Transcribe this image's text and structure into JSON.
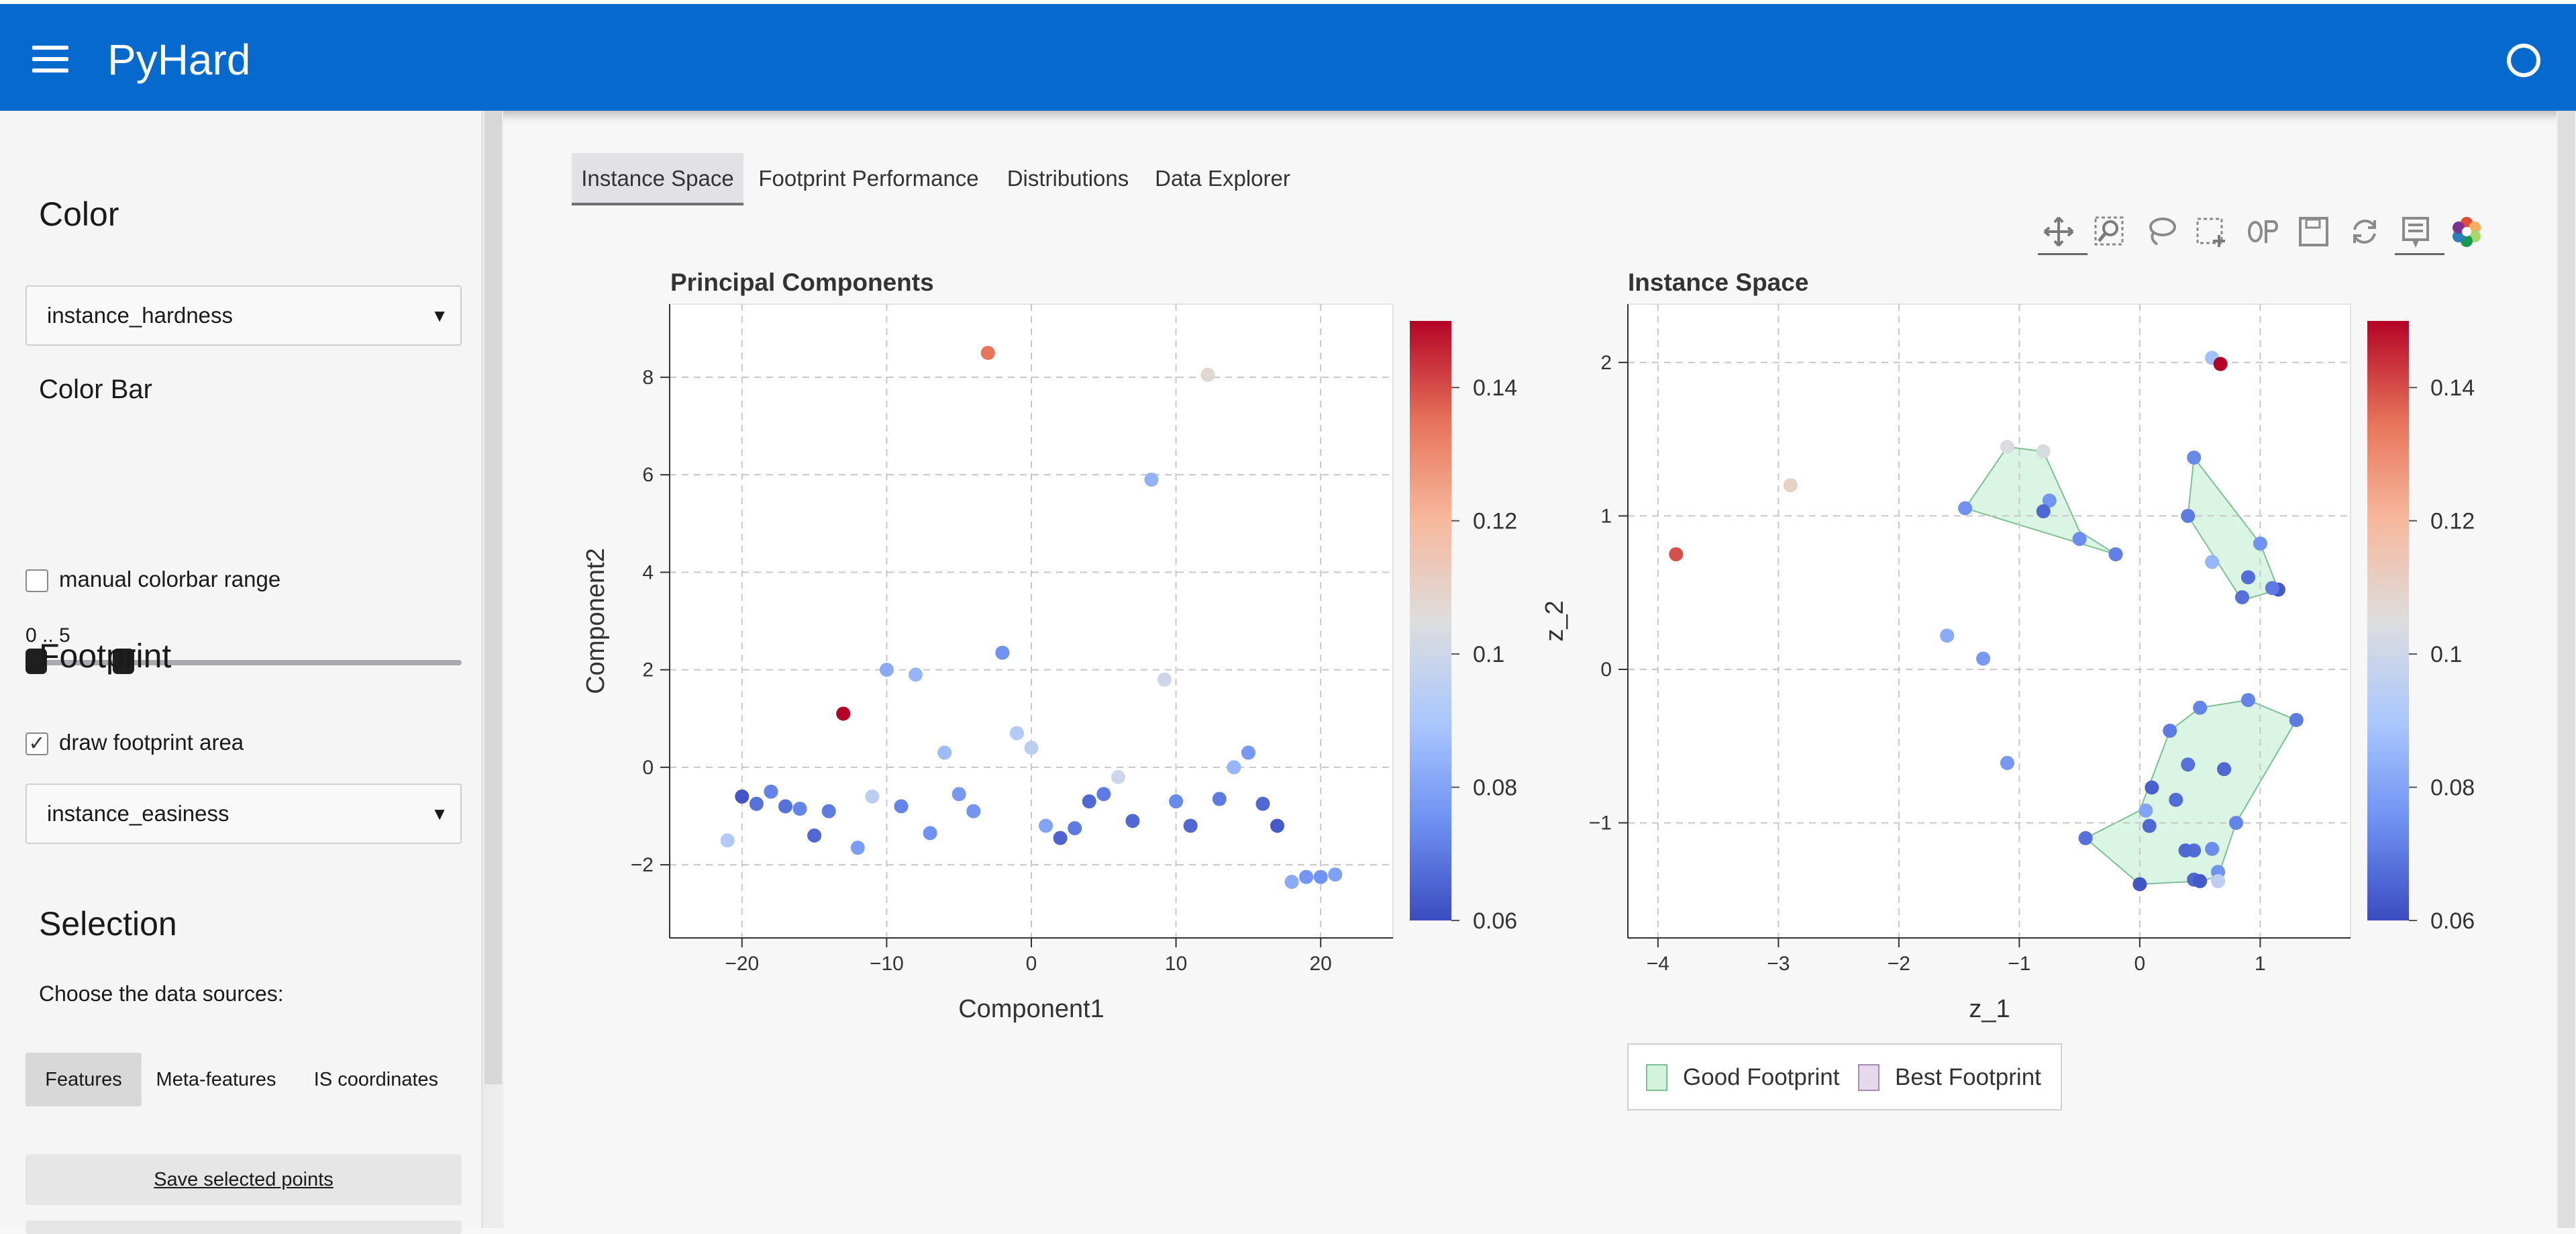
{
  "app": {
    "title": "PyHard"
  },
  "sidebar": {
    "color_heading": "Color",
    "color_select": "instance_hardness",
    "colorbar_heading": "Color Bar",
    "manual_range_label": "manual colorbar range",
    "range_value_label": "0 .. 5",
    "range_values": [
      0,
      1
    ],
    "range_max": 5,
    "footprint_heading": "Footprint",
    "draw_footprint_label": "draw footprint area",
    "draw_footprint_check": "✓",
    "footprint_select": "instance_easiness",
    "selection_heading": "Selection",
    "data_sources_label": "Choose the data sources:",
    "sources": [
      "Features",
      "Meta-features",
      "IS coordinates"
    ],
    "save_button": "Save selected points"
  },
  "tabs": [
    "Instance Space",
    "Footprint Performance",
    "Distributions",
    "Data Explorer"
  ],
  "toolbar": [
    "pan-icon",
    "box-zoom-icon",
    "lasso-select-icon",
    "box-select-icon",
    "hover-icon",
    "save-icon",
    "reset-icon",
    "tooltip-icon",
    "bokeh-logo-icon"
  ],
  "colorbar": {
    "min": 0.06,
    "max": 0.15,
    "ticks": [
      0.06,
      0.08,
      0.1,
      0.12,
      0.14
    ],
    "tick_labels": [
      "0.06",
      "0.08",
      "0.1",
      "0.12",
      "0.14"
    ],
    "colors": [
      "#3b4cc0",
      "#6f92f3",
      "#aac7fd",
      "#dddddd",
      "#f7b89c",
      "#e7745b",
      "#b40426"
    ]
  },
  "chart_data": [
    {
      "type": "scatter",
      "title": "Principal Components",
      "xlabel": "Component1",
      "ylabel": "Component2",
      "xlim": [
        -25,
        25
      ],
      "ylim": [
        -3.5,
        9.5
      ],
      "xticks": [
        -20,
        -10,
        0,
        10,
        20
      ],
      "xtick_labels": [
        "−20",
        "−10",
        "0",
        "10",
        "20"
      ],
      "yticks": [
        -2,
        0,
        2,
        4,
        6,
        8
      ],
      "ytick_labels": [
        "−2",
        "0",
        "2",
        "4",
        "6",
        "8"
      ],
      "grid": true,
      "points": [
        [
          -3,
          8.5,
          0.135
        ],
        [
          12.2,
          8.05,
          0.108
        ],
        [
          8.3,
          5.9,
          0.084
        ],
        [
          -13,
          1.1,
          0.15
        ],
        [
          -10,
          2.0,
          0.082
        ],
        [
          -8,
          1.9,
          0.085
        ],
        [
          -2,
          2.35,
          0.075
        ],
        [
          9.2,
          1.8,
          0.1
        ],
        [
          -1,
          0.7,
          0.092
        ],
        [
          0,
          0.4,
          0.095
        ],
        [
          -6,
          0.3,
          0.087
        ],
        [
          6,
          -0.2,
          0.1
        ],
        [
          14,
          0,
          0.085
        ],
        [
          15,
          0.3,
          0.077
        ],
        [
          -20,
          -0.6,
          0.062
        ],
        [
          -19,
          -0.75,
          0.068
        ],
        [
          -18,
          -0.5,
          0.072
        ],
        [
          -17,
          -0.8,
          0.068
        ],
        [
          -16,
          -0.85,
          0.072
        ],
        [
          -14,
          -0.9,
          0.07
        ],
        [
          -11,
          -0.6,
          0.095
        ],
        [
          -9,
          -0.8,
          0.072
        ],
        [
          -5,
          -0.55,
          0.077
        ],
        [
          -4,
          -0.9,
          0.076
        ],
        [
          -15,
          -1.4,
          0.066
        ],
        [
          -12,
          -1.65,
          0.078
        ],
        [
          -21,
          -1.5,
          0.092
        ],
        [
          -7,
          -1.35,
          0.075
        ],
        [
          1,
          -1.2,
          0.08
        ],
        [
          2,
          -1.45,
          0.065
        ],
        [
          3,
          -1.25,
          0.07
        ],
        [
          4,
          -0.7,
          0.066
        ],
        [
          5,
          -0.55,
          0.07
        ],
        [
          7,
          -1.1,
          0.066
        ],
        [
          10,
          -0.7,
          0.073
        ],
        [
          11,
          -1.2,
          0.066
        ],
        [
          13,
          -0.65,
          0.07
        ],
        [
          16,
          -0.75,
          0.066
        ],
        [
          17,
          -1.2,
          0.063
        ],
        [
          18,
          -2.35,
          0.082
        ],
        [
          19,
          -2.25,
          0.076
        ],
        [
          20,
          -2.25,
          0.075
        ],
        [
          21,
          -2.2,
          0.079
        ]
      ]
    },
    {
      "type": "scatter",
      "title": "Instance Space",
      "xlabel": "z_1",
      "ylabel": "z_2",
      "xlim": [
        -4.25,
        1.75
      ],
      "ylim": [
        -1.75,
        2.38
      ],
      "xticks": [
        -4,
        -3,
        -2,
        -1,
        0,
        1
      ],
      "xtick_labels": [
        "−4",
        "−3",
        "−2",
        "−1",
        "0",
        "1"
      ],
      "yticks": [
        -1,
        0,
        1,
        2
      ],
      "ytick_labels": [
        "−1",
        "0",
        "1",
        "2"
      ],
      "grid": true,
      "legend": [
        "Good Footprint",
        "Best Footprint"
      ],
      "legend_placement": "bottom",
      "footprint_colors": {
        "good": "#d3f3df",
        "good_stroke": "#7fbf95",
        "best": "#e6d9ec",
        "best_stroke": "#a78bb3"
      },
      "good_footprints": [
        [
          [
            -1.45,
            1.05
          ],
          [
            -1.1,
            1.45
          ],
          [
            -0.8,
            1.42
          ],
          [
            -0.5,
            0.9
          ],
          [
            -0.2,
            0.75
          ]
        ],
        [
          [
            0.4,
            1.0
          ],
          [
            0.45,
            1.38
          ],
          [
            1.0,
            0.82
          ],
          [
            1.15,
            0.52
          ],
          [
            0.85,
            0.45
          ]
        ],
        [
          [
            -0.45,
            -1.1
          ],
          [
            0.0,
            -1.4
          ],
          [
            0.5,
            -1.38
          ],
          [
            0.65,
            -1.35
          ],
          [
            0.8,
            -1.0
          ],
          [
            1.3,
            -0.33
          ],
          [
            0.9,
            -0.2
          ],
          [
            0.5,
            -0.25
          ],
          [
            0.25,
            -0.4
          ],
          [
            0.0,
            -0.92
          ]
        ]
      ],
      "points": [
        [
          -3.85,
          0.75,
          0.14
        ],
        [
          -2.9,
          1.2,
          0.11
        ],
        [
          0.6,
          2.03,
          0.088
        ],
        [
          0.67,
          1.99,
          0.15
        ],
        [
          -1.45,
          1.05,
          0.075
        ],
        [
          -1.1,
          1.45,
          0.104
        ],
        [
          -0.8,
          1.42,
          0.103
        ],
        [
          -0.75,
          1.1,
          0.076
        ],
        [
          -0.8,
          1.03,
          0.066
        ],
        [
          -0.5,
          0.85,
          0.074
        ],
        [
          -0.2,
          0.75,
          0.071
        ],
        [
          0.45,
          1.38,
          0.073
        ],
        [
          0.4,
          1.0,
          0.07
        ],
        [
          0.6,
          0.7,
          0.085
        ],
        [
          1.0,
          0.82,
          0.075
        ],
        [
          0.9,
          0.6,
          0.067
        ],
        [
          0.85,
          0.47,
          0.068
        ],
        [
          1.15,
          0.52,
          0.063
        ],
        [
          1.1,
          0.53,
          0.07
        ],
        [
          -1.6,
          0.22,
          0.082
        ],
        [
          -1.3,
          0.07,
          0.077
        ],
        [
          -1.1,
          -0.61,
          0.077
        ],
        [
          0.9,
          -0.2,
          0.072
        ],
        [
          1.3,
          -0.33,
          0.07
        ],
        [
          0.5,
          -0.25,
          0.072
        ],
        [
          0.25,
          -0.4,
          0.07
        ],
        [
          0.4,
          -0.62,
          0.068
        ],
        [
          0.7,
          -0.65,
          0.066
        ],
        [
          0.1,
          -0.77,
          0.064
        ],
        [
          0.3,
          -0.85,
          0.067
        ],
        [
          0.05,
          -0.92,
          0.08
        ],
        [
          0.8,
          -1.0,
          0.072
        ],
        [
          0.08,
          -1.02,
          0.066
        ],
        [
          0.45,
          -1.18,
          0.067
        ],
        [
          0.38,
          -1.18,
          0.066
        ],
        [
          0.6,
          -1.17,
          0.074
        ],
        [
          -0.45,
          -1.1,
          0.068
        ],
        [
          0.0,
          -1.4,
          0.062
        ],
        [
          0.45,
          -1.37,
          0.066
        ],
        [
          0.5,
          -1.38,
          0.063
        ],
        [
          0.65,
          -1.32,
          0.075
        ],
        [
          0.65,
          -1.38,
          0.095
        ]
      ]
    }
  ]
}
